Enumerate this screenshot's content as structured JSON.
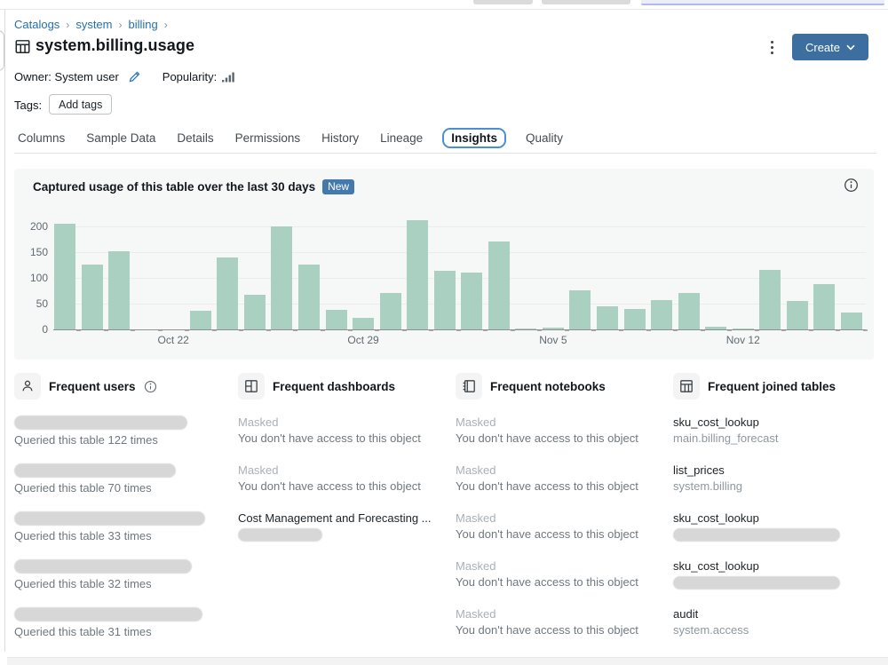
{
  "breadcrumb": {
    "items": [
      "Catalogs",
      "system",
      "billing"
    ],
    "separator": "›"
  },
  "header": {
    "title": "system.billing.usage",
    "create_button": "Create",
    "owner_label": "Owner:",
    "owner_value": "System user",
    "popularity_label": "Popularity:",
    "tags_label": "Tags:",
    "add_tags_button": "Add tags"
  },
  "tabs": {
    "items": [
      "Columns",
      "Sample Data",
      "Details",
      "Permissions",
      "History",
      "Lineage",
      "Insights",
      "Quality"
    ],
    "active": "Insights"
  },
  "usage_panel": {
    "title": "Captured usage of this table over the last 30 days",
    "badge": "New"
  },
  "chart_data": {
    "type": "bar",
    "title": "Captured usage of this table over the last 30 days",
    "values": [
      205,
      125,
      152,
      0,
      0,
      37,
      140,
      68,
      200,
      126,
      38,
      23,
      70,
      212,
      113,
      110,
      170,
      2,
      3,
      75,
      45,
      40,
      57,
      70,
      5,
      2,
      115,
      55,
      88,
      33
    ],
    "ylim": [
      0,
      220
    ],
    "yticks": [
      0,
      50,
      100,
      150,
      200
    ],
    "x_tick_labels": [
      {
        "label": "Oct 22",
        "index": 4
      },
      {
        "label": "Oct 29",
        "index": 11
      },
      {
        "label": "Nov 5",
        "index": 18
      },
      {
        "label": "Nov 12",
        "index": 25
      }
    ],
    "bar_color": "#a9d0c1",
    "grid": true,
    "legend": "none"
  },
  "sections": {
    "users": {
      "title": "Frequent users",
      "entries": [
        {
          "name_masked": true,
          "caption": "Queried this table 122 times"
        },
        {
          "name_masked": true,
          "caption": "Queried this table 70 times"
        },
        {
          "name_masked": true,
          "caption": "Queried this table 33 times"
        },
        {
          "name_masked": true,
          "caption": "Queried this table 32 times"
        },
        {
          "name_masked": true,
          "caption": "Queried this table 31 times"
        }
      ]
    },
    "dashboards": {
      "title": "Frequent dashboards",
      "entries": [
        {
          "title": "Masked",
          "subtitle": "You don't have access to this object"
        },
        {
          "title": "Masked",
          "subtitle": "You don't have access to this object"
        },
        {
          "title": "Cost Management and Forecasting ...",
          "subtitle_masked": true
        }
      ]
    },
    "notebooks": {
      "title": "Frequent notebooks",
      "entries": [
        {
          "title": "Masked",
          "subtitle": "You don't have access to this object"
        },
        {
          "title": "Masked",
          "subtitle": "You don't have access to this object"
        },
        {
          "title": "Masked",
          "subtitle": "You don't have access to this object"
        },
        {
          "title": "Masked",
          "subtitle": "You don't have access to this object"
        },
        {
          "title": "Masked",
          "subtitle": "You don't have access to this object"
        }
      ]
    },
    "joined_tables": {
      "title": "Frequent joined tables",
      "entries": [
        {
          "name": "sku_cost_lookup",
          "qualifier": "main.billing_forecast"
        },
        {
          "name": "list_prices",
          "qualifier": "system.billing"
        },
        {
          "name": "sku_cost_lookup",
          "qualifier_masked": true
        },
        {
          "name": "sku_cost_lookup",
          "qualifier_masked": true
        },
        {
          "name": "audit",
          "qualifier": "system.access"
        }
      ]
    }
  }
}
